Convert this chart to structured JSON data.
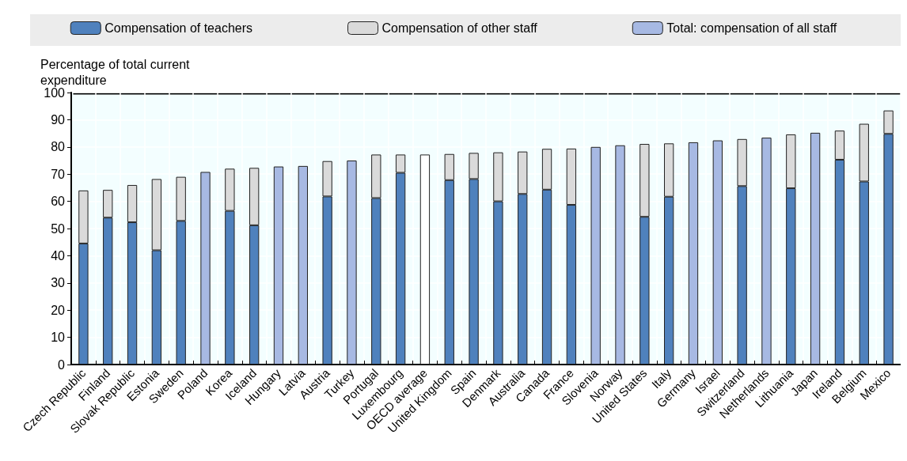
{
  "chart_data": {
    "type": "bar",
    "stacked": true,
    "ylabel": "Percentage of total current\nexpenditure",
    "categories": [
      "Czech Republic",
      "Finland",
      "Slovak Republic",
      "Estonia",
      "Sweden",
      "Poland",
      "Korea",
      "Iceland",
      "Hungary",
      "Latvia",
      "Austria",
      "Turkey",
      "Portugal",
      "Luxembourg",
      "OECD average",
      "United Kingdom",
      "Spain",
      "Denmark",
      "Australia",
      "Canada",
      "France",
      "Slovenia",
      "Norway",
      "United States",
      "Italy",
      "Germany",
      "Israel",
      "Switzerland",
      "Netherlands",
      "Lithuania",
      "Japan",
      "Ireland",
      "Belgium",
      "Mexico"
    ],
    "series": [
      {
        "name": "Compensation of teachers",
        "color": "#4f81bd",
        "values": [
          44.5,
          54,
          52.3,
          42,
          52.8,
          null,
          56.5,
          51.2,
          null,
          null,
          61.8,
          null,
          61.2,
          70.5,
          null,
          67.8,
          68.2,
          60,
          62.7,
          64.3,
          58.7,
          null,
          null,
          54.3,
          61.7,
          null,
          null,
          65.6,
          null,
          64.8,
          null,
          75.3,
          67.3,
          84.8
        ]
      },
      {
        "name": "Compensation of other staff",
        "color": "#dadada",
        "values": [
          19.5,
          10.2,
          13.7,
          26.2,
          16.2,
          null,
          15.5,
          21.1,
          null,
          null,
          13,
          null,
          16,
          6.7,
          null,
          9.6,
          9.6,
          18,
          15.6,
          15,
          20.7,
          null,
          null,
          26.8,
          19.6,
          null,
          null,
          17.3,
          null,
          19.8,
          null,
          10.7,
          21.2,
          8.6
        ]
      },
      {
        "name": "Total: compensation of all staff",
        "color": "#a7b9e3",
        "colors": [
          null,
          null,
          null,
          null,
          null,
          "#a7b9e3",
          null,
          null,
          "#a7b9e3",
          "#a7b9e3",
          null,
          "#a7b9e3",
          null,
          null,
          "#ffffff",
          null,
          null,
          null,
          null,
          null,
          null,
          "#a7b9e3",
          "#a7b9e3",
          null,
          null,
          "#a7b9e3",
          "#a7b9e3",
          null,
          "#a7b9e3",
          null,
          "#a7b9e3",
          null,
          null,
          null
        ],
        "values": [
          null,
          null,
          null,
          null,
          null,
          70.8,
          null,
          null,
          72.8,
          73,
          null,
          75,
          null,
          null,
          77.2,
          null,
          null,
          null,
          null,
          null,
          null,
          80,
          80.6,
          null,
          null,
          81.7,
          82.4,
          null,
          83.4,
          null,
          85.2,
          null,
          null,
          null
        ]
      }
    ],
    "ylim": [
      0,
      100
    ],
    "yticks": [
      0,
      10,
      20,
      30,
      40,
      50,
      60,
      70,
      80,
      90,
      100
    ],
    "grid": true,
    "legend": "top"
  }
}
